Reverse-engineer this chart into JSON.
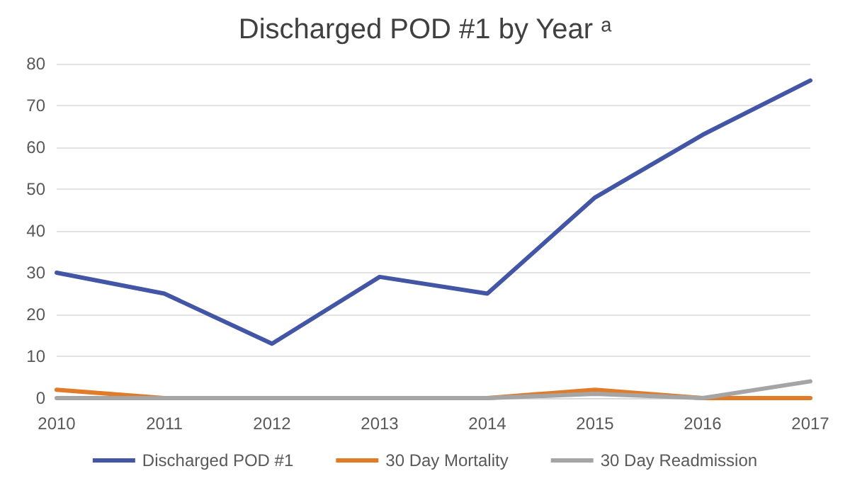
{
  "chart_data": {
    "type": "line",
    "title": "Discharged POD #1 by Year ᵃ",
    "categories": [
      "2010",
      "2011",
      "2012",
      "2013",
      "2014",
      "2015",
      "2016",
      "2017"
    ],
    "series": [
      {
        "name": "Discharged POD #1",
        "color": "#4355a5",
        "values": [
          30,
          25,
          13,
          29,
          25,
          48,
          63,
          76
        ]
      },
      {
        "name": "30 Day Mortality",
        "color": "#e07b2a",
        "values": [
          2,
          0,
          0,
          0,
          0,
          2,
          0,
          0
        ]
      },
      {
        "name": "30 Day Readmission",
        "color": "#a5a5a5",
        "values": [
          0,
          0,
          0,
          0,
          0,
          1,
          0,
          4
        ]
      }
    ],
    "ylim": [
      0,
      80
    ],
    "yticks": [
      0,
      10,
      20,
      30,
      40,
      50,
      60,
      70,
      80
    ],
    "grid": "y",
    "legend": "bottom",
    "marker": "none",
    "line_style": "solid"
  }
}
